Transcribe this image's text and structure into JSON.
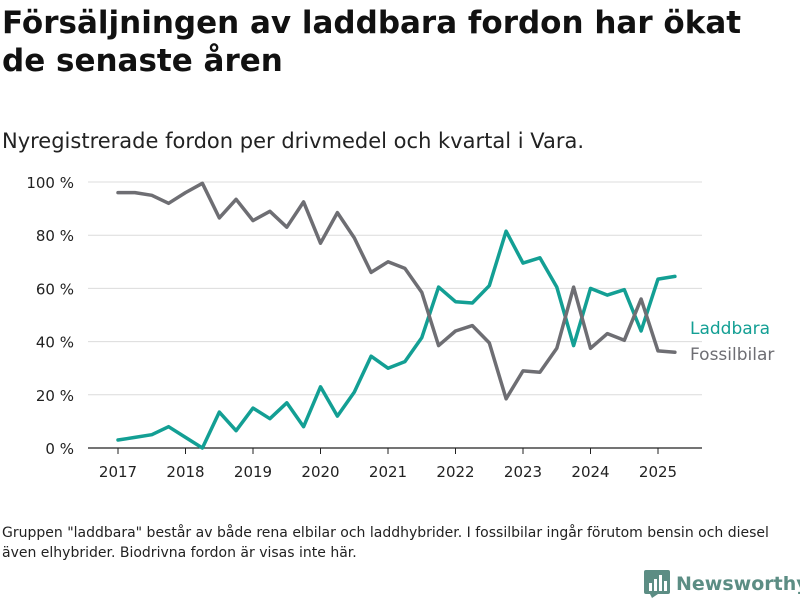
{
  "title": "Försäljningen av laddbara fordon har ökat de senaste åren",
  "subtitle": "Nyregistrerade fordon per drivmedel och kvartal i Vara.",
  "footnote": "Gruppen \"laddbara\" består av både rena elbilar och laddhybrider. I fossilbilar ingår förutom bensin och diesel även elhybrider. Biodrivna fordon är visas inte här.",
  "logo": {
    "text": "Newsworthy"
  },
  "chart_data": {
    "type": "line",
    "x_start": "2017 Q1",
    "x_tick_labels": [
      "2017",
      "2018",
      "2019",
      "2020",
      "2021",
      "2022",
      "2023",
      "2024",
      "2025"
    ],
    "y_tick_labels": [
      "0 %",
      "20 %",
      "40 %",
      "60 %",
      "80 %",
      "100 %"
    ],
    "ylim": [
      0,
      100
    ],
    "grid": true,
    "legend": "right, inline labels at line ends",
    "series": [
      {
        "name": "Laddbara",
        "color": "#139f94",
        "values": [
          3,
          4,
          5,
          8,
          4,
          0,
          13.5,
          6.5,
          15,
          11,
          17,
          8,
          23,
          12,
          21,
          34.5,
          30,
          32.5,
          41.5,
          60.5,
          55,
          54.5,
          61,
          81.5,
          69.5,
          71.5,
          60.5,
          38.5,
          60,
          57.5,
          59.5,
          44,
          63.5,
          64.5
        ]
      },
      {
        "name": "Fossilbilar",
        "color": "#6e6e73",
        "values": [
          96,
          96,
          95,
          92,
          96,
          99.5,
          86.5,
          93.5,
          85.5,
          89,
          83,
          92.5,
          77,
          88.5,
          79,
          66,
          70,
          67.5,
          58.5,
          38.5,
          44,
          46,
          39.5,
          18.5,
          29,
          28.5,
          37.5,
          60.5,
          37.5,
          43,
          40.5,
          56,
          36.5,
          36
        ]
      }
    ]
  }
}
